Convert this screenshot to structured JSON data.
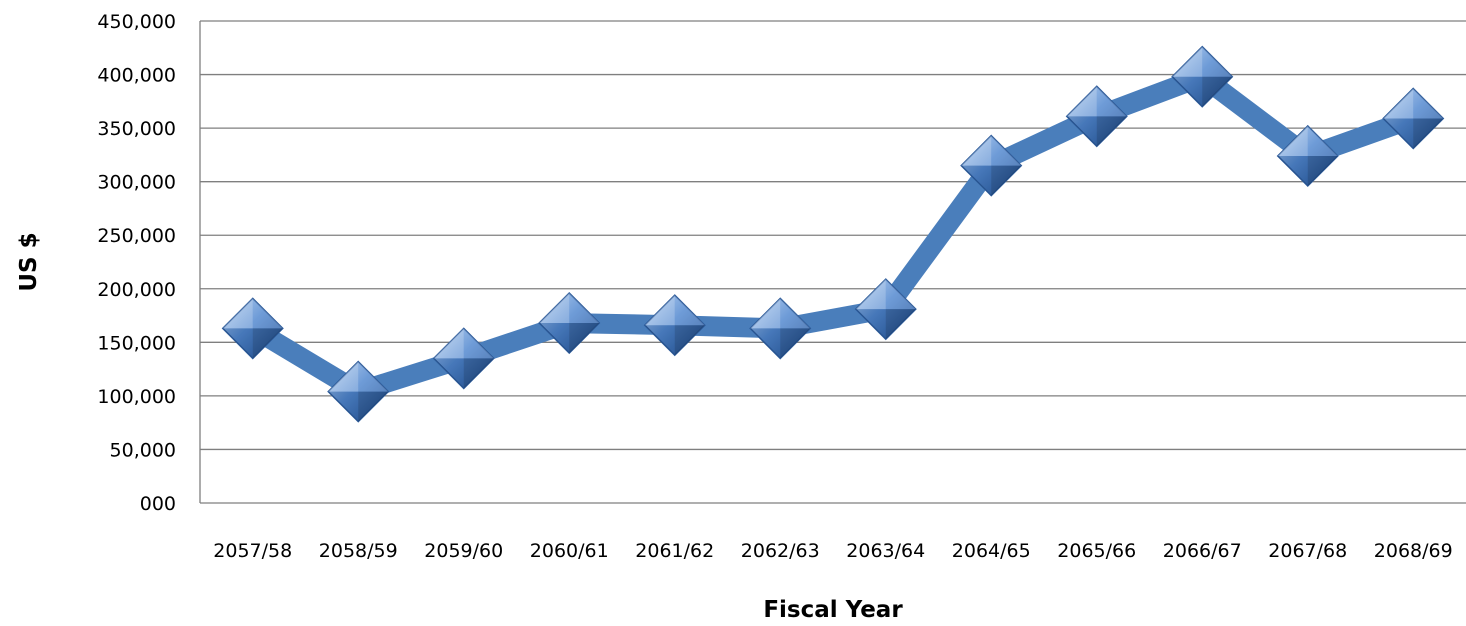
{
  "chart_data": {
    "type": "line",
    "title": "",
    "xlabel": "Fiscal Year",
    "ylabel": "US $",
    "ylim": [
      0,
      450000
    ],
    "y_tick_labels": [
      "000",
      "50,000",
      "100,000",
      "150,000",
      "200,000",
      "250,000",
      "300,000",
      "350,000",
      "400,000",
      "450,000"
    ],
    "y_tick_values": [
      0,
      50000,
      100000,
      150000,
      200000,
      250000,
      300000,
      350000,
      400000,
      450000
    ],
    "categories": [
      "2057/58",
      "2058/59",
      "2059/60",
      "2060/61",
      "2061/62",
      "2062/63",
      "2063/64",
      "2064/65",
      "2065/66",
      "2066/67",
      "2067/68",
      "2068/69"
    ],
    "series": [
      {
        "values": [
          163000,
          104000,
          135000,
          168000,
          166000,
          163000,
          181000,
          315000,
          361000,
          398000,
          324000,
          359000
        ]
      }
    ],
    "grid": true,
    "legend": "none",
    "colors": {
      "line": "#4a7ebb",
      "marker": "#4a7ebb",
      "grid": "#7f7f7f",
      "axis": "#7f7f7f"
    }
  }
}
